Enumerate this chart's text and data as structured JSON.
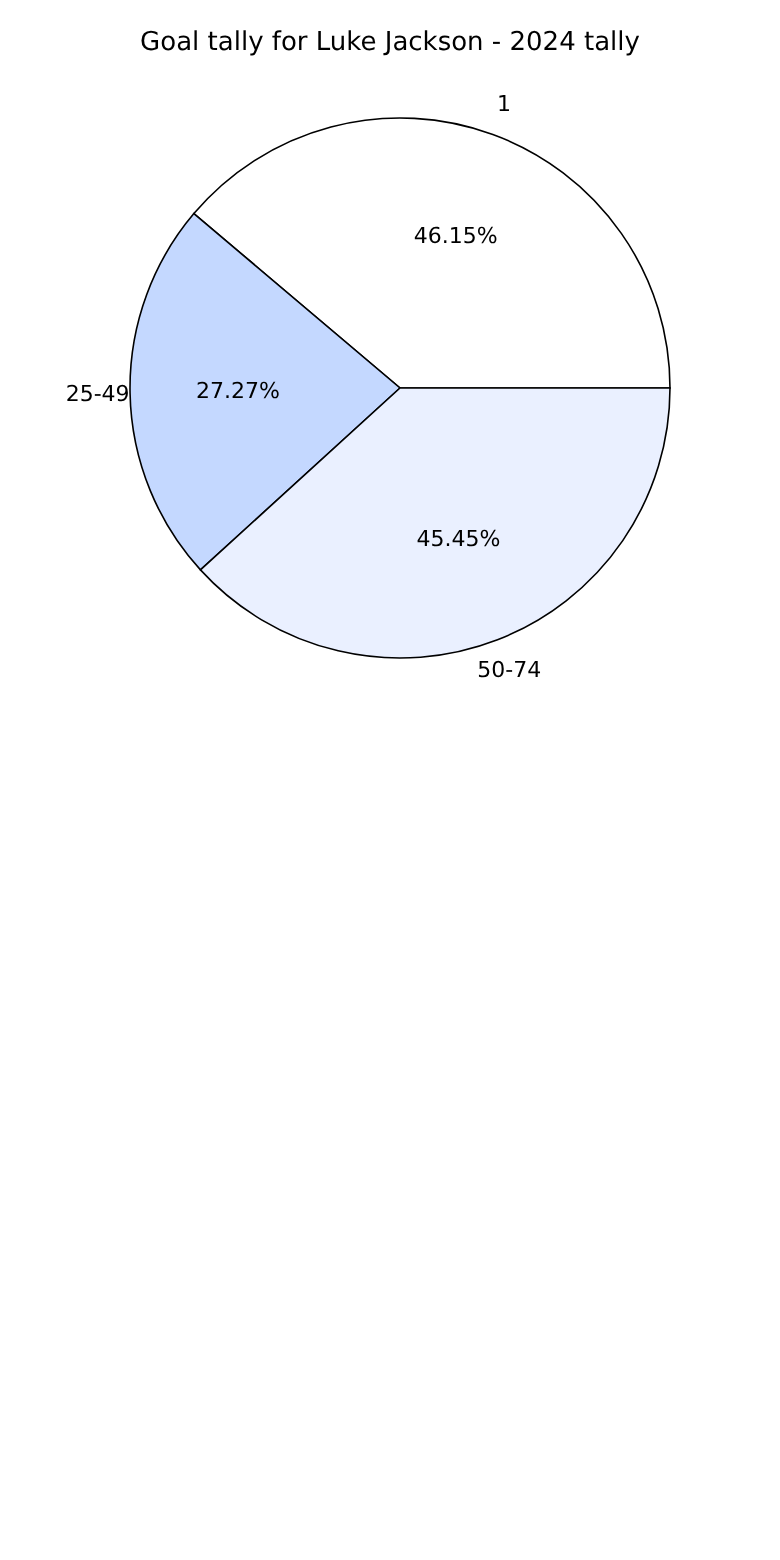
{
  "chart_data": {
    "type": "pie",
    "title": "Goal tally for Luke Jackson - 2024 tally",
    "categories": [
      "1",
      "25-49",
      "50-74"
    ],
    "values": [
      46.15,
      27.27,
      45.45
    ],
    "value_labels": [
      "46.15%",
      "27.27%",
      "45.45%"
    ],
    "colors": [
      "#ffffff",
      "#c4d8ff",
      "#eaf0ff"
    ]
  }
}
